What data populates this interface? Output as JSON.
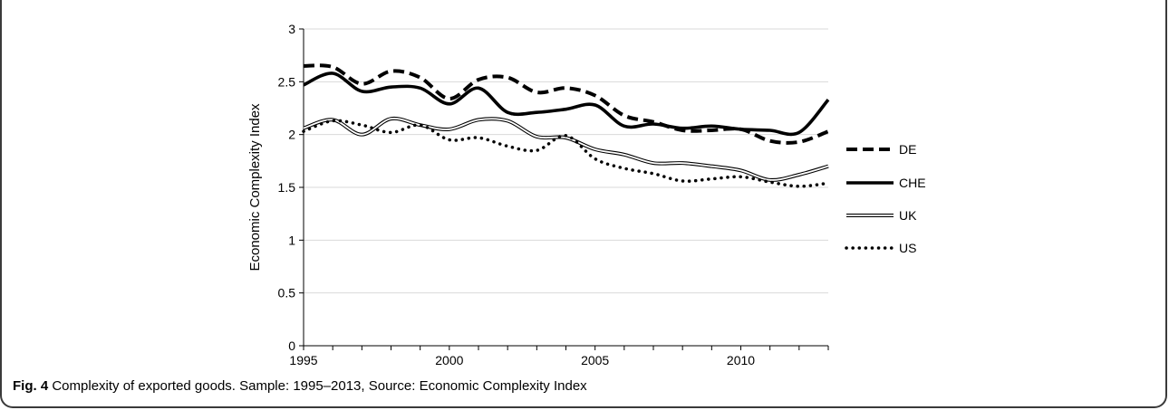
{
  "caption": {
    "label": "Fig. 4",
    "text": "Complexity of exported goods. Sample: 1995–2013, Source: Economic Complexity Index"
  },
  "chart_data": {
    "type": "line",
    "title": "",
    "xlabel": "",
    "ylabel": "Economic Complexity Index",
    "xlim": [
      1995,
      2013
    ],
    "ylim": [
      0,
      3
    ],
    "x_ticks": [
      1995,
      2000,
      2005,
      2010
    ],
    "y_ticks": [
      "0",
      "0.5",
      "1",
      "1.5",
      "2",
      "2.5",
      "3"
    ],
    "grid": "horizontal",
    "legend_position": "right",
    "x": [
      1995,
      1996,
      1997,
      1998,
      1999,
      2000,
      2001,
      2002,
      2003,
      2004,
      2005,
      2006,
      2007,
      2008,
      2009,
      2010,
      2011,
      2012,
      2013
    ],
    "series": [
      {
        "name": "DE",
        "style": "dashed",
        "color": "#000000",
        "values": [
          2.65,
          2.64,
          2.48,
          2.6,
          2.54,
          2.34,
          2.52,
          2.54,
          2.4,
          2.44,
          2.37,
          2.18,
          2.12,
          2.04,
          2.04,
          2.05,
          1.94,
          1.93,
          2.03
        ]
      },
      {
        "name": "CHE",
        "style": "solid-thick",
        "color": "#000000",
        "values": [
          2.47,
          2.58,
          2.41,
          2.45,
          2.44,
          2.29,
          2.44,
          2.21,
          2.21,
          2.24,
          2.28,
          2.08,
          2.1,
          2.06,
          2.08,
          2.05,
          2.04,
          2.02,
          2.33
        ]
      },
      {
        "name": "UK",
        "style": "double",
        "color": "#000000",
        "values": [
          2.06,
          2.14,
          2.0,
          2.15,
          2.09,
          2.05,
          2.14,
          2.13,
          1.98,
          1.97,
          1.86,
          1.81,
          1.73,
          1.73,
          1.7,
          1.66,
          1.57,
          1.62,
          1.7
        ]
      },
      {
        "name": "US",
        "style": "dotted",
        "color": "#000000",
        "values": [
          2.03,
          2.13,
          2.09,
          2.02,
          2.09,
          1.95,
          1.97,
          1.89,
          1.85,
          1.99,
          1.77,
          1.68,
          1.63,
          1.56,
          1.58,
          1.6,
          1.55,
          1.51,
          1.54
        ]
      }
    ]
  }
}
